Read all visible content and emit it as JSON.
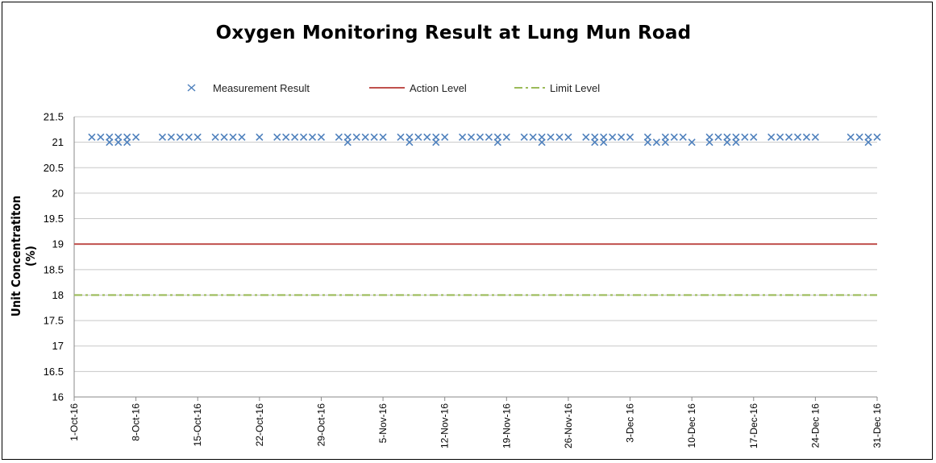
{
  "chart_data": {
    "type": "scatter",
    "title": "Oxygen Monitoring Result at Lung Mun Road",
    "ylabel": "Unit Concentratiton (%)",
    "xlabel": "",
    "ylim": [
      16,
      21.5
    ],
    "y_ticks": [
      "21.5",
      "21",
      "20.5",
      "20",
      "19.5",
      "19",
      "18.5",
      "18",
      "17.5",
      "17",
      "16.5",
      "16"
    ],
    "x_ticks": [
      "1-Oct-16",
      "8-Oct-16",
      "15-Oct-16",
      "22-Oct-16",
      "29-Oct-16",
      "5-Nov-16",
      "12-Nov-16",
      "19-Nov-16",
      "26-Nov-16",
      "3-Dec 16",
      "10-Dec 16",
      "17-Dec-16",
      "24-Dec 16",
      "31-Dec 16"
    ],
    "x_range": [
      "2016-10-01",
      "2016-12-31"
    ],
    "grid": true,
    "legend_position": "top",
    "series": [
      {
        "name": "Measurement Result",
        "color": "#4f81bd",
        "marker": "x",
        "points": [
          [
            "2016-10-03",
            21.1
          ],
          [
            "2016-10-04",
            21.1
          ],
          [
            "2016-10-05",
            21.0
          ],
          [
            "2016-10-05",
            21.1
          ],
          [
            "2016-10-06",
            21.0
          ],
          [
            "2016-10-06",
            21.1
          ],
          [
            "2016-10-07",
            21.0
          ],
          [
            "2016-10-07",
            21.1
          ],
          [
            "2016-10-08",
            21.1
          ],
          [
            "2016-10-11",
            21.1
          ],
          [
            "2016-10-12",
            21.1
          ],
          [
            "2016-10-13",
            21.1
          ],
          [
            "2016-10-14",
            21.1
          ],
          [
            "2016-10-15",
            21.1
          ],
          [
            "2016-10-17",
            21.1
          ],
          [
            "2016-10-18",
            21.1
          ],
          [
            "2016-10-19",
            21.1
          ],
          [
            "2016-10-20",
            21.1
          ],
          [
            "2016-10-22",
            21.1
          ],
          [
            "2016-10-24",
            21.1
          ],
          [
            "2016-10-25",
            21.1
          ],
          [
            "2016-10-26",
            21.1
          ],
          [
            "2016-10-27",
            21.1
          ],
          [
            "2016-10-28",
            21.1
          ],
          [
            "2016-10-29",
            21.1
          ],
          [
            "2016-10-31",
            21.1
          ],
          [
            "2016-11-01",
            21.0
          ],
          [
            "2016-11-01",
            21.1
          ],
          [
            "2016-11-02",
            21.1
          ],
          [
            "2016-11-03",
            21.1
          ],
          [
            "2016-11-04",
            21.1
          ],
          [
            "2016-11-05",
            21.1
          ],
          [
            "2016-11-07",
            21.1
          ],
          [
            "2016-11-08",
            21.0
          ],
          [
            "2016-11-08",
            21.1
          ],
          [
            "2016-11-09",
            21.1
          ],
          [
            "2016-11-10",
            21.1
          ],
          [
            "2016-11-11",
            21.0
          ],
          [
            "2016-11-11",
            21.1
          ],
          [
            "2016-11-12",
            21.1
          ],
          [
            "2016-11-14",
            21.1
          ],
          [
            "2016-11-15",
            21.1
          ],
          [
            "2016-11-16",
            21.1
          ],
          [
            "2016-11-17",
            21.1
          ],
          [
            "2016-11-18",
            21.0
          ],
          [
            "2016-11-18",
            21.1
          ],
          [
            "2016-11-19",
            21.1
          ],
          [
            "2016-11-21",
            21.1
          ],
          [
            "2016-11-22",
            21.1
          ],
          [
            "2016-11-23",
            21.0
          ],
          [
            "2016-11-23",
            21.1
          ],
          [
            "2016-11-24",
            21.1
          ],
          [
            "2016-11-25",
            21.1
          ],
          [
            "2016-11-26",
            21.1
          ],
          [
            "2016-11-28",
            21.1
          ],
          [
            "2016-11-29",
            21.0
          ],
          [
            "2016-11-29",
            21.1
          ],
          [
            "2016-11-30",
            21.0
          ],
          [
            "2016-11-30",
            21.1
          ],
          [
            "2016-12-01",
            21.1
          ],
          [
            "2016-12-02",
            21.1
          ],
          [
            "2016-12-03",
            21.1
          ],
          [
            "2016-12-05",
            21.0
          ],
          [
            "2016-12-05",
            21.1
          ],
          [
            "2016-12-06",
            21.0
          ],
          [
            "2016-12-07",
            21.0
          ],
          [
            "2016-12-07",
            21.1
          ],
          [
            "2016-12-08",
            21.1
          ],
          [
            "2016-12-09",
            21.1
          ],
          [
            "2016-12-10",
            21.0
          ],
          [
            "2016-12-12",
            21.0
          ],
          [
            "2016-12-12",
            21.1
          ],
          [
            "2016-12-13",
            21.1
          ],
          [
            "2016-12-14",
            21.0
          ],
          [
            "2016-12-14",
            21.1
          ],
          [
            "2016-12-15",
            21.0
          ],
          [
            "2016-12-15",
            21.1
          ],
          [
            "2016-12-16",
            21.1
          ],
          [
            "2016-12-17",
            21.1
          ],
          [
            "2016-12-19",
            21.1
          ],
          [
            "2016-12-20",
            21.1
          ],
          [
            "2016-12-21",
            21.1
          ],
          [
            "2016-12-22",
            21.1
          ],
          [
            "2016-12-23",
            21.1
          ],
          [
            "2016-12-24",
            21.1
          ],
          [
            "2016-12-28",
            21.1
          ],
          [
            "2016-12-29",
            21.1
          ],
          [
            "2016-12-30",
            21.0
          ],
          [
            "2016-12-30",
            21.1
          ],
          [
            "2016-12-31",
            21.1
          ]
        ]
      },
      {
        "name": "Action Level",
        "color": "#c0504d",
        "style": "solid",
        "value": 19
      },
      {
        "name": "Limit Level",
        "color": "#9bbb59",
        "style": "dash-dot",
        "value": 18
      }
    ]
  }
}
